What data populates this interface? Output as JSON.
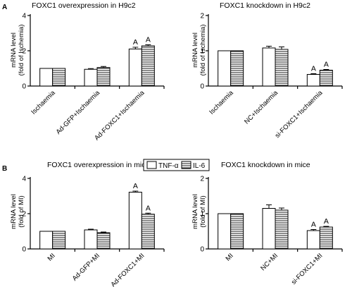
{
  "legend": {
    "items": [
      {
        "label": "TNF-α",
        "pattern": "open"
      },
      {
        "label": "IL-6",
        "pattern": "striped"
      }
    ]
  },
  "chart_data": [
    {
      "type": "bar",
      "panel_label": "A",
      "title": "FOXC1 overexpression in H9c2",
      "ylabel": [
        "mRNA level",
        "(fold of Ischemia)"
      ],
      "ylim": [
        0,
        4
      ],
      "yticks": [
        0,
        2,
        4
      ],
      "categories": [
        "Ischaemia",
        "Ad-GFP+Ischaemia",
        "Ad-FOXC1+Ischaemia"
      ],
      "series": [
        {
          "name": "TNF-α",
          "values": [
            1.0,
            0.95,
            2.1
          ],
          "errors": [
            0.0,
            0.04,
            0.1
          ]
        },
        {
          "name": "IL-6",
          "values": [
            1.0,
            1.05,
            2.28
          ],
          "errors": [
            0.0,
            0.06,
            0.06
          ]
        }
      ],
      "annotations": [
        {
          "category": "Ad-FOXC1+Ischaemia",
          "series": "TNF-α",
          "text": "A"
        },
        {
          "category": "Ad-FOXC1+Ischaemia",
          "series": "IL-6",
          "text": "A"
        }
      ]
    },
    {
      "type": "bar",
      "panel_label": "",
      "title": "FOXC1 knockdown in H9c2",
      "ylabel": [
        "mRNA level",
        "(fold of Ischemia)"
      ],
      "ylim": [
        0,
        2
      ],
      "yticks": [
        0,
        1,
        2
      ],
      "categories": [
        "Ischaemia",
        "NC+Ischaemia",
        "si-FOXC1+Ischaemia"
      ],
      "series": [
        {
          "name": "TNF-α",
          "values": [
            1.0,
            1.08,
            0.33
          ],
          "errors": [
            0.0,
            0.05,
            0.02
          ]
        },
        {
          "name": "IL-6",
          "values": [
            1.0,
            1.04,
            0.45
          ],
          "errors": [
            0.0,
            0.07,
            0.02
          ]
        }
      ],
      "annotations": [
        {
          "category": "si-FOXC1+Ischaemia",
          "series": "TNF-α",
          "text": "A"
        },
        {
          "category": "si-FOXC1+Ischaemia",
          "series": "IL-6",
          "text": "A"
        }
      ]
    },
    {
      "type": "bar",
      "panel_label": "B",
      "title": "FOXC1 overexpression in mice",
      "ylabel": [
        "mRNA level",
        "(fold of MI)"
      ],
      "ylim": [
        0,
        4
      ],
      "yticks": [
        0,
        2,
        4
      ],
      "categories": [
        "MI",
        "Ad-GFP+MI",
        "Ad-FOXC1+MI"
      ],
      "series": [
        {
          "name": "TNF-α",
          "values": [
            1.0,
            1.08,
            3.22
          ],
          "errors": [
            0.0,
            0.04,
            0.06
          ]
        },
        {
          "name": "IL-6",
          "values": [
            1.0,
            0.92,
            1.97
          ],
          "errors": [
            0.0,
            0.04,
            0.06
          ]
        }
      ],
      "annotations": [
        {
          "category": "Ad-FOXC1+MI",
          "series": "TNF-α",
          "text": "A"
        },
        {
          "category": "Ad-FOXC1+MI",
          "series": "IL-6",
          "text": "A"
        }
      ]
    },
    {
      "type": "bar",
      "panel_label": "",
      "title": "FOXC1 knockdown in mice",
      "ylabel": [
        "mRNA level",
        "(fold of MI)"
      ],
      "ylim": [
        0,
        2
      ],
      "yticks": [
        0,
        1,
        2
      ],
      "categories": [
        "MI",
        "NC+MI",
        "si-FOXC1+MI"
      ],
      "series": [
        {
          "name": "TNF-α",
          "values": [
            1.0,
            1.15,
            0.52
          ],
          "errors": [
            0.0,
            0.1,
            0.03
          ]
        },
        {
          "name": "IL-6",
          "values": [
            1.0,
            1.1,
            0.62
          ],
          "errors": [
            0.0,
            0.06,
            0.02
          ]
        }
      ],
      "annotations": [
        {
          "category": "si-FOXC1+MI",
          "series": "TNF-α",
          "text": "A"
        },
        {
          "category": "si-FOXC1+MI",
          "series": "IL-6",
          "text": "A"
        }
      ]
    }
  ]
}
